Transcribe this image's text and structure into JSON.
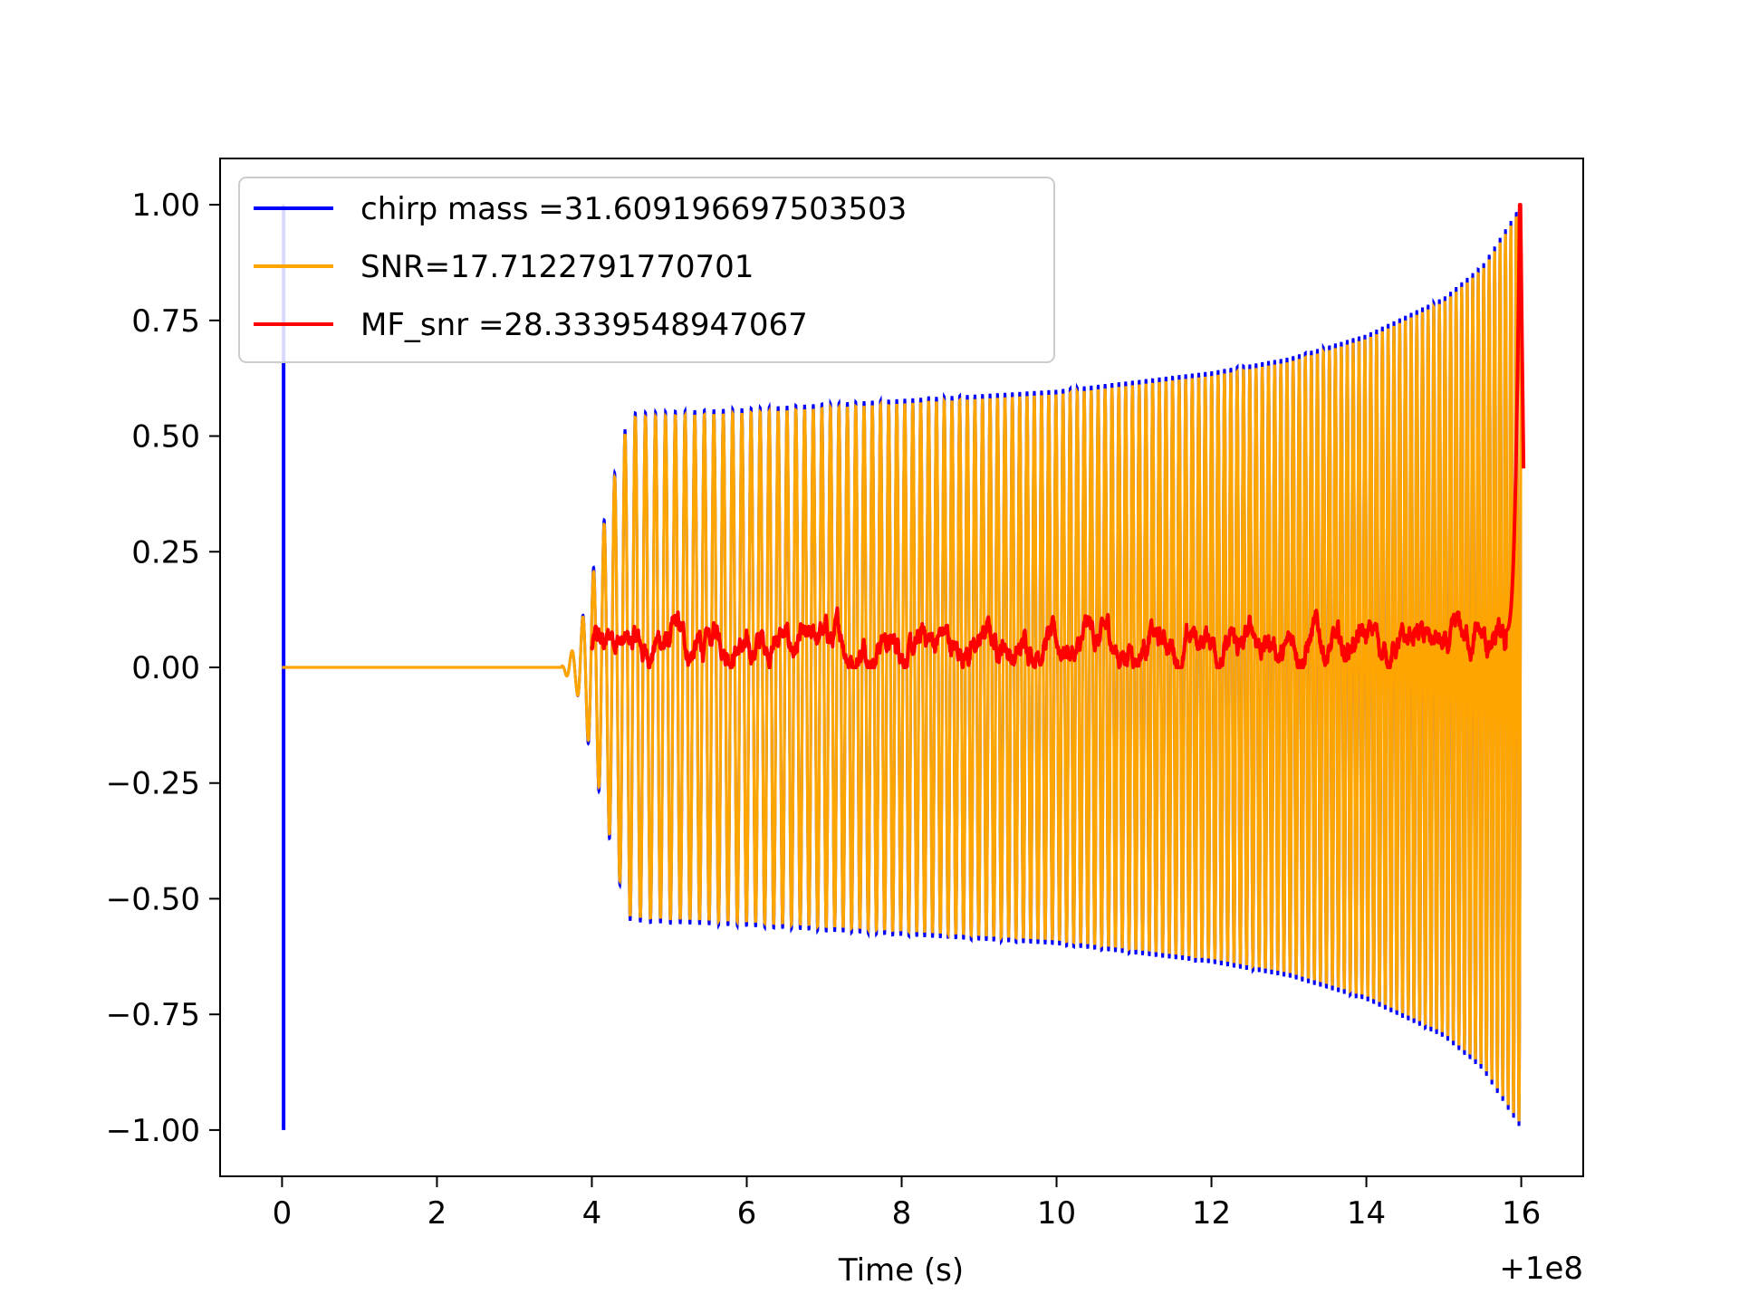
{
  "chart_data": {
    "type": "line",
    "title": "",
    "xlabel": "Time (s)",
    "ylabel": "",
    "x_offset_label": "+1e8",
    "xlim": [
      -0.8,
      16.8
    ],
    "ylim": [
      -1.1,
      1.1
    ],
    "xticks": [
      0,
      2,
      4,
      6,
      8,
      10,
      12,
      14,
      16
    ],
    "xtick_labels": [
      "0",
      "2",
      "4",
      "6",
      "8",
      "10",
      "12",
      "14",
      "16"
    ],
    "yticks": [
      1.0,
      0.75,
      0.5,
      0.25,
      0.0,
      -0.25,
      -0.5,
      -0.75,
      -1.0
    ],
    "ytick_labels": [
      "1.00",
      "0.75",
      "0.50",
      "0.25",
      "0.00",
      "−0.25",
      "−0.50",
      "−0.75",
      "−1.00"
    ],
    "grid": false,
    "legend_position": "upper-left",
    "series": [
      {
        "name": "chirp mass =31.609196697503503",
        "color": "#0000ff",
        "description": "normalized template waveform; spike to +1/-1 at t=0, zero until ~3.6 s, then oscillating chirp growing from ~0.55 amplitude at 4.5 s to 1.0 at 16 s",
        "envelope": {
          "x": [
            0,
            3.6,
            3.8,
            4.0,
            4.2,
            4.4,
            4.5,
            6,
            8,
            10,
            12,
            13,
            14,
            14.5,
            15,
            15.5,
            16
          ],
          "amp": [
            0,
            0,
            0.05,
            0.2,
            0.35,
            0.5,
            0.55,
            0.56,
            0.58,
            0.6,
            0.64,
            0.67,
            0.72,
            0.76,
            0.8,
            0.87,
            1.0
          ]
        },
        "spike": {
          "x": 0.02,
          "ymax": 1.0,
          "ymin": -1.0
        }
      },
      {
        "name": "SNR=17.7122791770701",
        "color": "#ffa500",
        "description": "whitened data trace overlaying the template; same envelope shape slightly inside the blue",
        "envelope": {
          "x": [
            0,
            3.6,
            3.8,
            4.0,
            4.2,
            4.4,
            4.5,
            6,
            8,
            10,
            12,
            13,
            14,
            14.5,
            15,
            15.5,
            16
          ],
          "amp": [
            0,
            0,
            0.05,
            0.19,
            0.34,
            0.49,
            0.54,
            0.55,
            0.57,
            0.59,
            0.63,
            0.66,
            0.71,
            0.75,
            0.79,
            0.86,
            0.99
          ]
        }
      },
      {
        "name": "MF_snr =28.3339548947067",
        "color": "#ff0000",
        "description": "matched filter SNR time series, noisy between ~0 and 0.12 from 4 s to 15.8 s, then sharp peak to 1.0 at 16 s, ending near 0.43",
        "x_start": 4.0,
        "x_end": 15.8,
        "baseline": 0.05,
        "noise": 0.035,
        "peak": {
          "x_rise_start": 15.8,
          "x_peak": 15.98,
          "y_peak": 1.0,
          "y_end": 0.43
        }
      }
    ]
  }
}
